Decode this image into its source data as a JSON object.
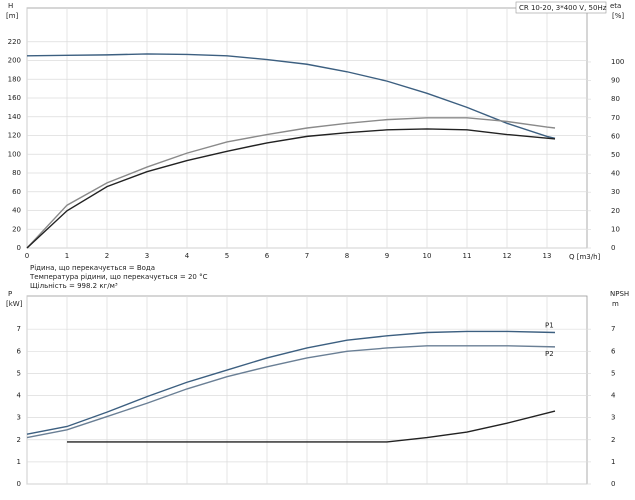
{
  "chart_data": [
    {
      "type": "line",
      "header": "CR 10-20, 3*400 V, 50Hz",
      "y_label": "H",
      "y_unit": "[m]",
      "y2_label": "eta",
      "y2_unit": "[%]",
      "x_label": "Q [m3/h]",
      "notes": [
        "Рідина, що перекачується = Вода",
        "Температура рідини, що перекачується = 20 °C",
        "Щільність = 998.2 кг/м³"
      ],
      "x": [
        0,
        1,
        2,
        3,
        4,
        5,
        6,
        7,
        8,
        9,
        10,
        11,
        12,
        13,
        13.2
      ],
      "xlim": [
        0,
        14
      ],
      "xticks": [
        0,
        1,
        2,
        3,
        4,
        5,
        6,
        7,
        8,
        9,
        10,
        11,
        12,
        13
      ],
      "ylim": [
        0,
        256
      ],
      "yticks": [
        0,
        20,
        40,
        60,
        80,
        100,
        120,
        140,
        160,
        180,
        200,
        220
      ],
      "y2lim": [
        0,
        129
      ],
      "y2ticks": [
        0,
        10,
        20,
        30,
        40,
        50,
        60,
        70,
        80,
        90,
        100
      ],
      "grid": true,
      "series": [
        {
          "color": "#3c5f80",
          "values": [
            205,
            205.5,
            206,
            207,
            206.5,
            205,
            201,
            196,
            188,
            178,
            165,
            150,
            133,
            119,
            117
          ]
        },
        {
          "color": "#8a8a8a",
          "axis": "y2",
          "values": [
            0,
            23,
            35,
            43.5,
            51,
            57,
            61,
            64.5,
            67,
            69,
            70,
            70,
            68,
            65,
            64.5
          ]
        },
        {
          "color": "#222222",
          "axis": "y2",
          "values": [
            0,
            20,
            33,
            41,
            47,
            52,
            56.5,
            60,
            62,
            63.5,
            64,
            63.5,
            61,
            59,
            58.6
          ]
        }
      ]
    },
    {
      "type": "line",
      "y_label": "P",
      "y_unit": "[kW]",
      "y2_label": "NPSH",
      "y2_unit": "m",
      "x": [
        0,
        1,
        2,
        3,
        4,
        5,
        6,
        7,
        8,
        9,
        10,
        11,
        12,
        13.2
      ],
      "xlim": [
        0,
        14
      ],
      "xticks": [
        0,
        1,
        2,
        3,
        4,
        5,
        6,
        7,
        8,
        9,
        10,
        11,
        12,
        13
      ],
      "ylim": [
        0,
        8.5
      ],
      "yticks": [
        0,
        1,
        2,
        3,
        4,
        5,
        6,
        7
      ],
      "y2lim": [
        0,
        8.5
      ],
      "y2ticks": [
        0,
        1,
        2,
        3,
        4,
        5,
        6,
        7
      ],
      "grid": true,
      "series": [
        {
          "name": "P1",
          "color": "#3c5f80",
          "values": [
            2.25,
            2.6,
            3.25,
            3.95,
            4.6,
            5.15,
            5.7,
            6.15,
            6.5,
            6.7,
            6.85,
            6.9,
            6.9,
            6.85
          ]
        },
        {
          "name": "P2",
          "color": "#6a7f95",
          "values": [
            2.1,
            2.45,
            3.05,
            3.65,
            4.3,
            4.85,
            5.3,
            5.7,
            6.0,
            6.15,
            6.25,
            6.25,
            6.25,
            6.2
          ]
        },
        {
          "color": "#222222",
          "axis": "y2",
          "values": [
            null,
            1.9,
            1.9,
            1.9,
            1.9,
            1.9,
            1.9,
            1.9,
            1.9,
            1.9,
            2.1,
            2.35,
            2.75,
            3.3
          ]
        }
      ]
    }
  ]
}
